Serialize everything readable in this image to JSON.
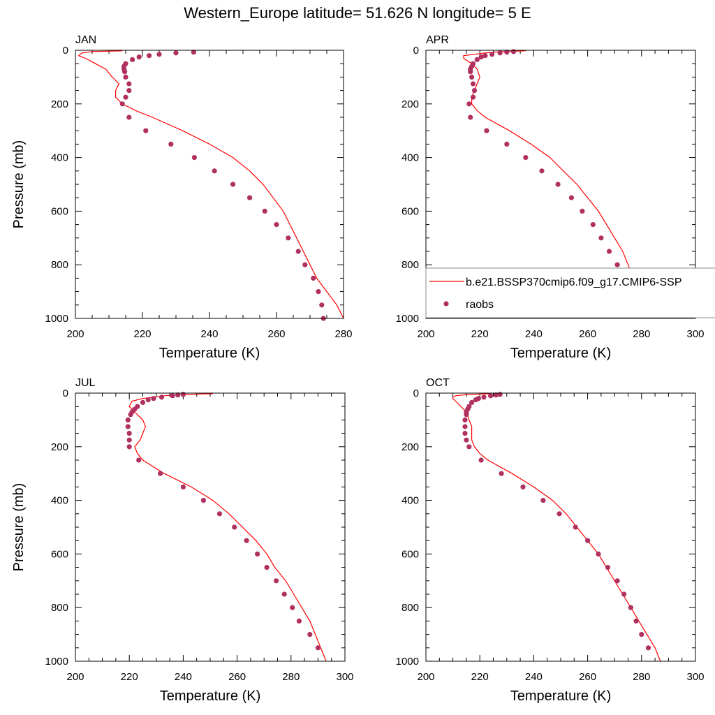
{
  "title": "Western_Europe  latitude= 51.626 N longitude= 5 E",
  "chart_data": [
    {
      "type": "line+scatter",
      "panel": "JAN",
      "xlabel": "Temperature (K)",
      "ylabel": "Pressure (mb)",
      "xlim": [
        200,
        280
      ],
      "ylim": [
        1000,
        0
      ],
      "xticks": [
        "200",
        "220",
        "240",
        "260",
        "280"
      ],
      "yticks": [
        "0",
        "200",
        "400",
        "600",
        "800",
        "1000"
      ],
      "model": {
        "p": [
          2,
          5,
          10,
          20,
          30,
          50,
          70,
          100,
          125,
          150,
          175,
          200,
          225,
          250,
          300,
          350,
          400,
          450,
          500,
          550,
          600,
          650,
          700,
          750,
          800,
          850,
          900,
          950,
          1000
        ],
        "t": [
          214,
          205,
          202,
          201,
          203,
          206,
          209,
          211,
          213,
          212,
          212,
          214,
          218,
          223,
          232,
          240,
          247,
          252,
          256,
          259,
          262,
          264,
          266,
          268,
          270,
          272,
          275,
          278,
          280
        ]
      },
      "raobs": {
        "p": [
          7,
          10,
          15,
          20,
          25,
          35,
          50,
          60,
          70,
          80,
          100,
          125,
          150,
          175,
          200,
          250,
          300,
          350,
          400,
          450,
          500,
          550,
          600,
          650,
          700,
          750,
          800,
          850,
          900,
          950,
          1000
        ],
        "t": [
          235.3,
          230,
          225,
          222,
          219,
          217,
          215,
          214.5,
          214.5,
          214.7,
          215,
          216,
          216,
          215,
          214,
          216,
          221,
          228.5,
          235.5,
          241.5,
          247,
          252,
          256.5,
          260,
          263.5,
          266.5,
          268.5,
          271,
          272.5,
          273.5,
          274
        ]
      }
    },
    {
      "type": "line+scatter",
      "panel": "APR",
      "xlabel": "Temperature (K)",
      "ylabel": "",
      "xlim": [
        200,
        300
      ],
      "ylim": [
        1000,
        0
      ],
      "xticks": [
        "200",
        "220",
        "240",
        "260",
        "280",
        "300"
      ],
      "yticks": [
        "0",
        "200",
        "400",
        "600",
        "800",
        "1000"
      ],
      "model": {
        "p": [
          2,
          5,
          10,
          15,
          20,
          30,
          50,
          70,
          100,
          125,
          150,
          175,
          200,
          225,
          250,
          300,
          350,
          400,
          450,
          500,
          550,
          600,
          650,
          700,
          750,
          800,
          850,
          900,
          950,
          1000
        ],
        "t": [
          237,
          228,
          222,
          218,
          214,
          214,
          217,
          219,
          220,
          219,
          218,
          217,
          217,
          219,
          222,
          231,
          239,
          246,
          251,
          256,
          260,
          264,
          267,
          270,
          273,
          275,
          277,
          279,
          282,
          285
        ]
      },
      "raobs": {
        "p": [
          5,
          7,
          10,
          15,
          20,
          25,
          35,
          50,
          60,
          70,
          80,
          100,
          125,
          150,
          175,
          200,
          250,
          300,
          350,
          400,
          450,
          500,
          550,
          600,
          650,
          700,
          750,
          800,
          850,
          900,
          950
        ],
        "t": [
          232.5,
          230,
          227.5,
          224.5,
          222,
          220.5,
          219,
          217.5,
          217,
          216.5,
          216.5,
          217,
          217.5,
          218,
          217.5,
          216,
          216.5,
          222.5,
          230,
          237,
          243,
          249,
          254,
          258,
          262,
          265,
          268,
          271,
          273.5,
          277,
          280
        ]
      }
    },
    {
      "type": "line+scatter",
      "panel": "JUL",
      "xlabel": "Temperature (K)",
      "ylabel": "Pressure (mb)",
      "xlim": [
        200,
        300
      ],
      "ylim": [
        1000,
        0
      ],
      "xticks": [
        "200",
        "220",
        "240",
        "260",
        "280",
        "300"
      ],
      "yticks": [
        "0",
        "200",
        "400",
        "600",
        "800",
        "1000"
      ],
      "model": {
        "p": [
          2,
          5,
          10,
          15,
          20,
          30,
          50,
          70,
          100,
          125,
          150,
          175,
          200,
          225,
          250,
          300,
          350,
          400,
          450,
          500,
          550,
          600,
          650,
          700,
          750,
          800,
          850,
          900,
          950,
          1000
        ],
        "t": [
          251,
          240,
          233,
          229,
          225,
          221,
          220,
          222,
          225,
          226,
          225,
          224,
          222,
          223,
          225,
          233,
          243,
          251,
          257,
          262,
          267,
          271,
          274,
          278,
          281,
          284,
          287,
          289,
          291,
          293
        ]
      },
      "raobs": {
        "p": [
          5,
          7,
          10,
          15,
          20,
          25,
          35,
          50,
          60,
          70,
          80,
          100,
          125,
          150,
          175,
          200,
          250,
          300,
          350,
          400,
          450,
          500,
          550,
          600,
          650,
          700,
          750,
          800,
          850,
          900,
          950
        ],
        "t": [
          240,
          238,
          236,
          232,
          229,
          227,
          225,
          223,
          222,
          221,
          220.5,
          219.5,
          219.5,
          220,
          220,
          220,
          223.5,
          231.5,
          240,
          247.5,
          253.5,
          259,
          263.5,
          267.5,
          271,
          274.5,
          277.5,
          280.5,
          283,
          287,
          290
        ]
      }
    },
    {
      "type": "line+scatter",
      "panel": "OCT",
      "xlabel": "Temperature (K)",
      "ylabel": "",
      "xlim": [
        200,
        300
      ],
      "ylim": [
        1000,
        0
      ],
      "xticks": [
        "200",
        "220",
        "240",
        "260",
        "280",
        "300"
      ],
      "yticks": [
        "0",
        "200",
        "400",
        "600",
        "800",
        "1000"
      ],
      "model": {
        "p": [
          2,
          5,
          10,
          15,
          20,
          30,
          50,
          70,
          100,
          125,
          150,
          175,
          200,
          225,
          250,
          300,
          350,
          400,
          450,
          500,
          550,
          600,
          650,
          700,
          750,
          800,
          850,
          900,
          950,
          1000
        ],
        "t": [
          224,
          216,
          211,
          210,
          210,
          211,
          213,
          215,
          216,
          217,
          217,
          217,
          218,
          220,
          223,
          232,
          240,
          247,
          252,
          256,
          260,
          264,
          267,
          270,
          273,
          276,
          279,
          282,
          285,
          287
        ]
      },
      "raobs": {
        "p": [
          5,
          7,
          10,
          15,
          20,
          25,
          35,
          50,
          60,
          70,
          80,
          100,
          125,
          150,
          175,
          200,
          250,
          300,
          350,
          400,
          450,
          500,
          550,
          600,
          650,
          700,
          750,
          800,
          850,
          900,
          950
        ],
        "t": [
          227.5,
          226,
          224,
          221.5,
          219.5,
          218.5,
          217,
          216,
          215.5,
          215,
          215,
          214.5,
          214.5,
          214.5,
          215,
          216,
          220.5,
          228,
          236,
          243.5,
          249.5,
          255.5,
          260,
          264,
          267.5,
          271,
          273.5,
          276,
          278,
          280,
          282.5
        ]
      }
    }
  ],
  "legend": {
    "panel": "APR",
    "items": [
      {
        "label": "b.e21.BSSP370cmip6.f09_g17.CMIP6-SSP",
        "kind": "line",
        "color": "#ff0000"
      },
      {
        "label": "raobs",
        "kind": "marker",
        "color": "#b03060"
      }
    ]
  },
  "colors": {
    "model": "#ff0000",
    "raobs": "#b03060"
  }
}
